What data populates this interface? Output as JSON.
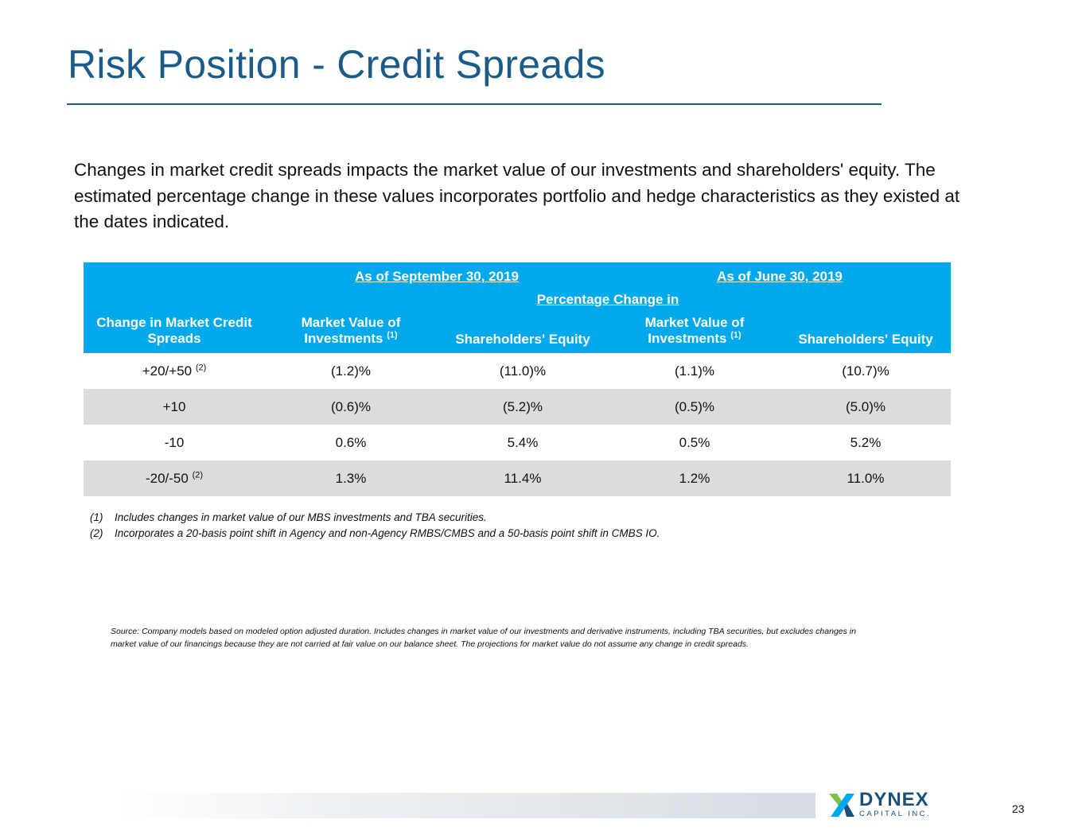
{
  "header": {
    "title": "Risk Position - Credit Spreads"
  },
  "intro": "Changes in market credit spreads impacts the market value of our investments and shareholders' equity. The estimated percentage change in these values incorporates portfolio and hedge characteristics as they existed at the dates indicated.",
  "table": {
    "period_1": "As of September 30, 2019",
    "period_2": "As of June 30, 2019",
    "pct_change_header": "Percentage Change in",
    "col_change": "Change in Market Credit Spreads",
    "col_mv_line1": "Market Value of",
    "col_mv_line2": "Investments",
    "col_mv_note": "(1)",
    "col_equity": "Shareholders' Equity",
    "rows": [
      {
        "label": "+20/+50",
        "note": "(2)",
        "mv_sep": "(1.2)%",
        "eq_sep": "(11.0)%",
        "mv_jun": "(1.1)%",
        "eq_jun": "(10.7)%"
      },
      {
        "label": "+10",
        "note": "",
        "mv_sep": "(0.6)%",
        "eq_sep": "(5.2)%",
        "mv_jun": "(0.5)%",
        "eq_jun": "(5.0)%"
      },
      {
        "label": "-10",
        "note": "",
        "mv_sep": "0.6%",
        "eq_sep": "5.4%",
        "mv_jun": "0.5%",
        "eq_jun": "5.2%"
      },
      {
        "label": "-20/-50",
        "note": "(2)",
        "mv_sep": "1.3%",
        "eq_sep": "11.4%",
        "mv_jun": "1.2%",
        "eq_jun": "11.0%"
      }
    ]
  },
  "footnotes": [
    {
      "num": "(1)",
      "text": "Includes changes in market value of our MBS investments and TBA securities."
    },
    {
      "num": "(2)",
      "text": "Incorporates a 20-basis point shift in Agency and non-Agency RMBS/CMBS and a 50-basis point shift in CMBS IO."
    }
  ],
  "source": "Source: Company models based on modeled option adjusted duration. Includes changes in market value of our investments and derivative instruments, including TBA securities, but excludes changes in market value of our financings because they are not carried at fair value on our balance sheet. The projections for market value do not assume any change in credit spreads.",
  "footer": {
    "logo_name": "DYNEX",
    "logo_sub": "CAPITAL INC.",
    "page_number": "23"
  },
  "colors": {
    "title": "#1a5b87",
    "table_header": "#00a8ec",
    "alt_row": "#dcdcdc",
    "logo": "#1a4f7a"
  }
}
